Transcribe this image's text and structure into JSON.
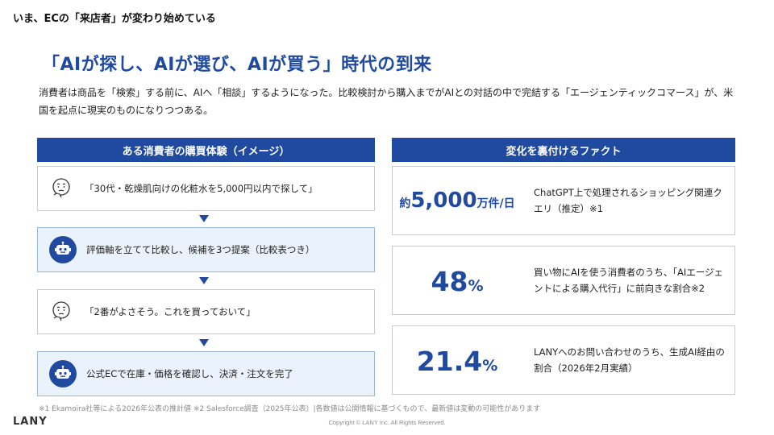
{
  "top_label": "いま、ECの「来店者」が変わり始めている",
  "headline": "「AIが探し、AIが選び、AIが買う」時代の到来",
  "lead": "消費者は商品を「検索」する前に、AIへ「相談」するようになった。比較検討から購入までがAIとの対話の中で完結する「エージェンティックコマース」が、米国を起点に現実のものになりつつある。",
  "left_panel": {
    "header": "ある消費者の購買体験（イメージ）",
    "steps": [
      {
        "actor": "user",
        "icon": "thinking-person-icon",
        "text": "「30代・乾燥肌向けの化粧水を5,000円以内で探して」"
      },
      {
        "actor": "ai",
        "icon": "robot-icon",
        "text": "評価軸を立てて比較し、候補を3つ提案（比較表つき）"
      },
      {
        "actor": "user",
        "icon": "thinking-person-icon",
        "text": "「2番がよさそう。これを買っておいて」"
      },
      {
        "actor": "ai",
        "icon": "robot-icon",
        "text": "公式ECで在庫・価格を確認し、決済・注文を完了"
      }
    ]
  },
  "right_panel": {
    "header": "変化を裏付けるファクト",
    "facts": [
      {
        "prefix": "約",
        "number": "5,000",
        "suffix": "万件/日",
        "description": "ChatGPT上で処理されるショッピング関連クエリ（推定）※1"
      },
      {
        "prefix": "",
        "number": "48",
        "suffix": "%",
        "description": "買い物にAIを使う消費者のうち、「AIエージェントによる購入代行」に前向きな割合※2"
      },
      {
        "prefix": "",
        "number": "21.4",
        "suffix": "%",
        "description": "LANYへのお問い合わせのうち、生成AI経由の割合（2026年2月実績）"
      }
    ]
  },
  "footnote": "※1 Ekamoira社等による2026年公表の推計値 ※2 Salesforce調査（2025年公表）|各数値は公開情報に基づくもので、最新値は変動の可能性があります",
  "logo": "LANY",
  "copyright": "Copyright © LANY Inc. All Rights Reserved.",
  "colors": {
    "accent": "#1f4aa0",
    "ai_step_bg": "#eaf3fb",
    "border": "#c9cdd3"
  }
}
